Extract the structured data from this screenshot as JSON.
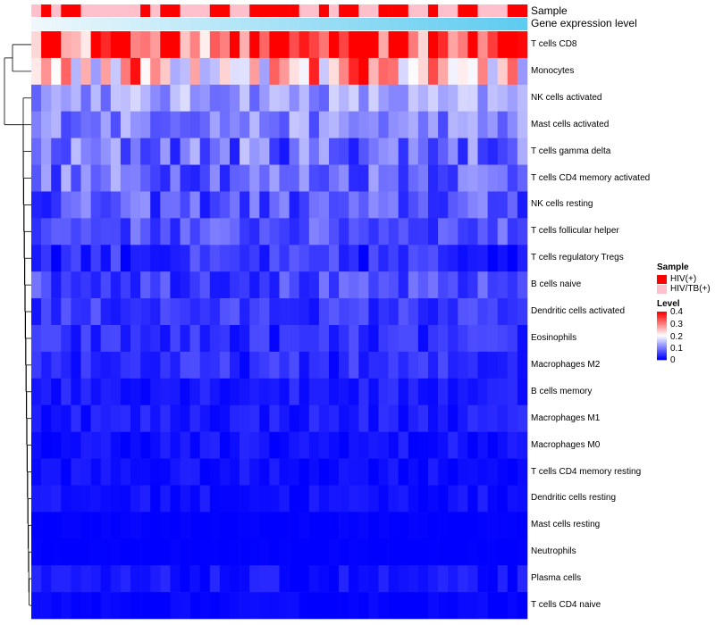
{
  "chart_data": {
    "type": "heatmap",
    "title": "",
    "annotation_labels": {
      "sample": "Sample",
      "expression": "Gene expression level"
    },
    "rows": [
      "T cells CD8",
      "Monocytes",
      "NK cells activated",
      "Mast cells activated",
      "T cells gamma delta",
      "T cells CD4 memory activated",
      "NK cells resting",
      "T cells follicular helper",
      "T cells regulatory  Tregs",
      "B cells naive",
      "Dendritic cells activated",
      "Eosinophils",
      "Macrophages M2",
      "B cells memory",
      "Macrophages M1",
      "Macrophages M0",
      "T cells CD4 memory resting",
      "Dendritic cells resting",
      "Mast cells resting",
      "Neutrophils",
      "Plasma cells",
      "T cells CD4 naive"
    ],
    "sample_groups": [
      "HIV/TB(+)",
      "HIV(+)",
      "HIV/TB(+)",
      "HIV(+)",
      "HIV(+)",
      "HIV/TB(+)",
      "HIV/TB(+)",
      "HIV/TB(+)",
      "HIV/TB(+)",
      "HIV/TB(+)",
      "HIV/TB(+)",
      "HIV(+)",
      "HIV/TB(+)",
      "HIV(+)",
      "HIV(+)",
      "HIV/TB(+)",
      "HIV/TB(+)",
      "HIV/TB(+)",
      "HIV(+)",
      "HIV(+)",
      "HIV/TB(+)",
      "HIV/TB(+)",
      "HIV(+)",
      "HIV(+)",
      "HIV(+)",
      "HIV(+)",
      "HIV(+)",
      "HIV/TB(+)",
      "HIV/TB(+)",
      "HIV(+)",
      "HIV/TB(+)",
      "HIV(+)",
      "HIV(+)",
      "HIV/TB(+)",
      "HIV/TB(+)",
      "HIV(+)",
      "HIV(+)",
      "HIV(+)",
      "HIV/TB(+)",
      "HIV/TB(+)",
      "HIV(+)",
      "HIV/TB(+)",
      "HIV/TB(+)",
      "HIV(+)",
      "HIV(+)",
      "HIV/TB(+)",
      "HIV/TB(+)",
      "HIV/TB(+)",
      "HIV(+)",
      "HIV(+)"
    ],
    "expression_gradient": {
      "start_color": "#eef8fc",
      "end_color": "#5ecbf0",
      "direction": "increasing"
    },
    "legend": {
      "sample_title": "Sample",
      "sample_entries": [
        {
          "label": "HIV(+)",
          "color": "#ff0000"
        },
        {
          "label": "HIV/TB(+)",
          "color": "#ffc0cb"
        }
      ],
      "level_title": "Level",
      "level_ticks": [
        "0.4",
        "0.3",
        "0.2",
        "0.1",
        "0"
      ],
      "level_range": [
        0,
        0.4
      ],
      "color_stops": [
        "#0000ff",
        "#ffffff",
        "#ff0000"
      ],
      "placement": "right"
    },
    "row_mean_levels": [
      0.33,
      0.24,
      0.12,
      0.1,
      0.08,
      0.08,
      0.06,
      0.06,
      0.03,
      0.05,
      0.04,
      0.03,
      0.03,
      0.02,
      0.02,
      0.01,
      0.01,
      0.01,
      0.0,
      0.0,
      0.01,
      0.0
    ],
    "row_variation": [
      0.14,
      0.15,
      0.05,
      0.05,
      0.07,
      0.06,
      0.05,
      0.04,
      0.04,
      0.04,
      0.03,
      0.03,
      0.03,
      0.02,
      0.02,
      0.02,
      0.015,
      0.015,
      0.005,
      0.003,
      0.02,
      0.01
    ],
    "row_dendrogram_order": "clustered",
    "columns_count": 50
  }
}
